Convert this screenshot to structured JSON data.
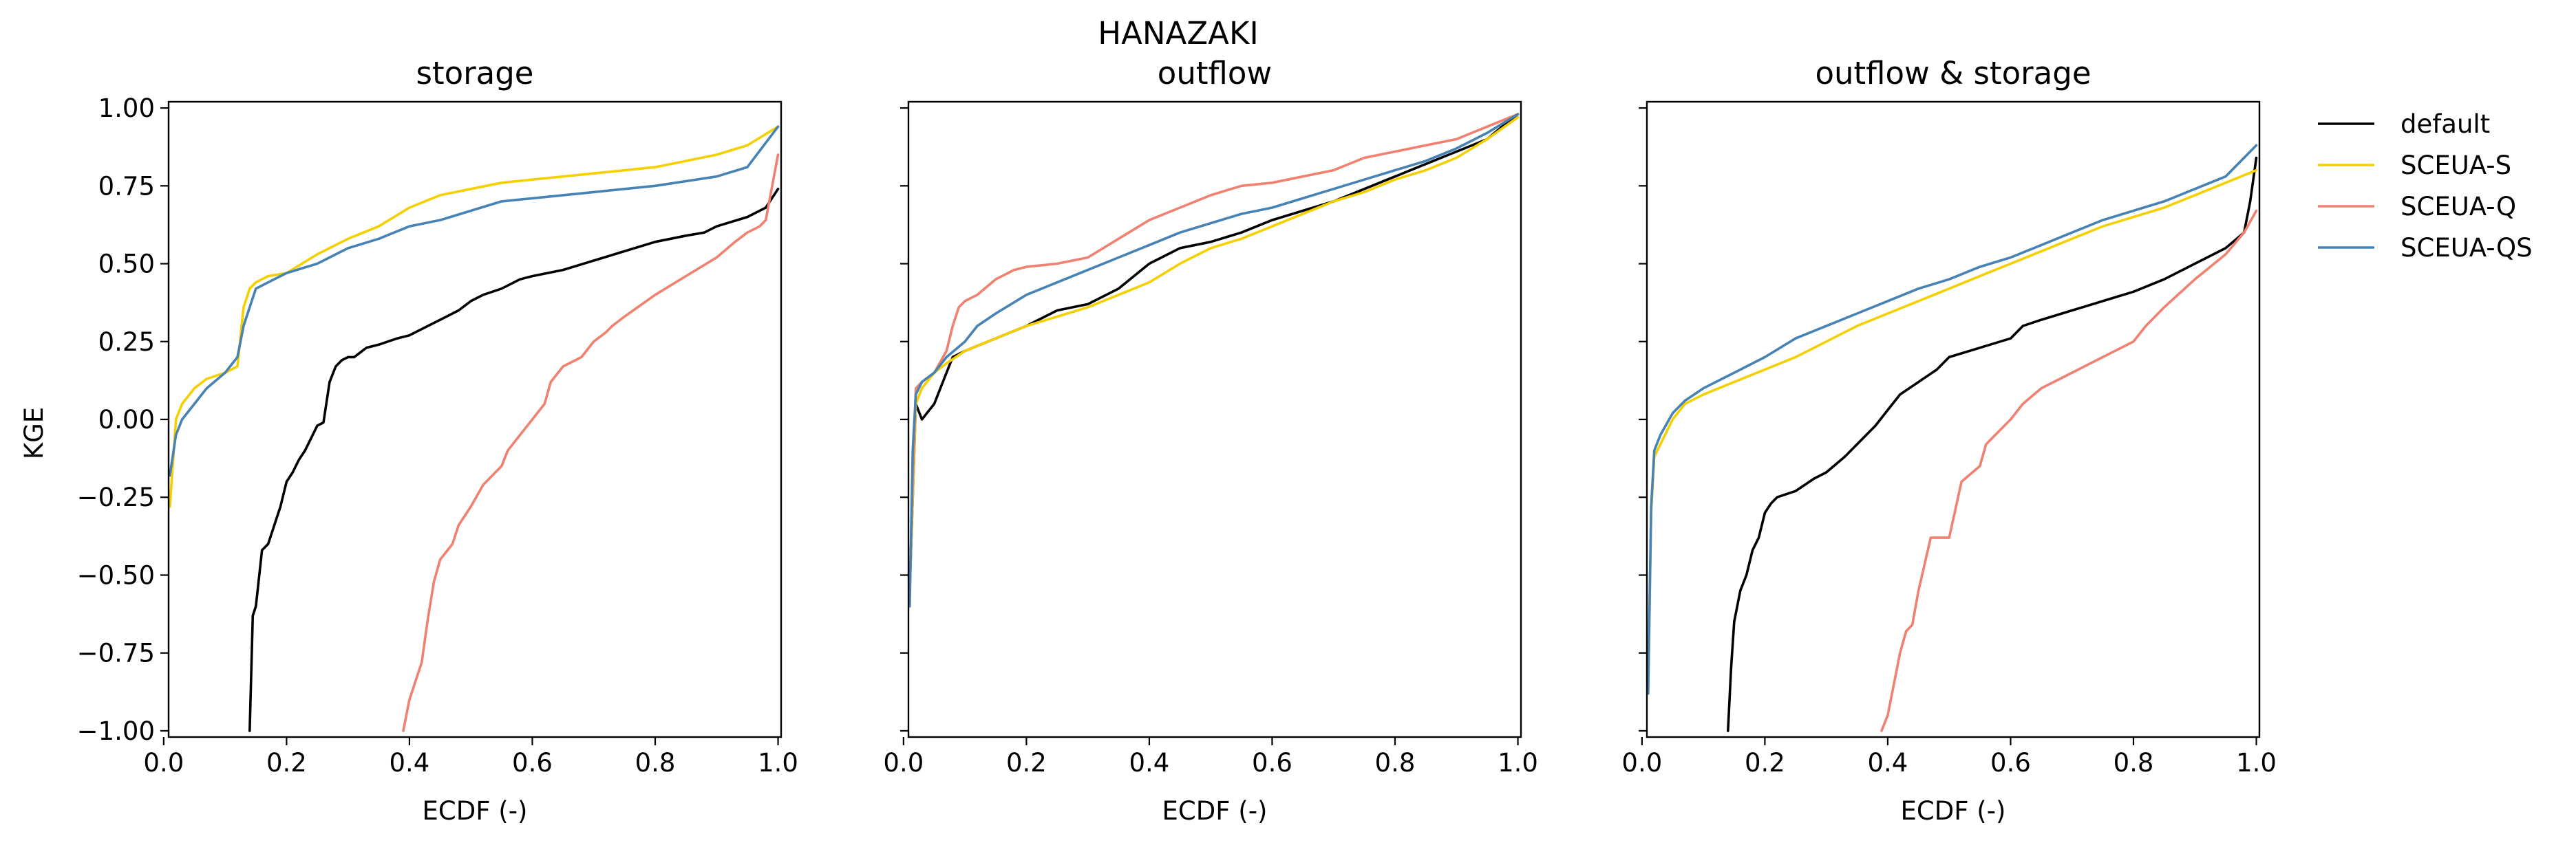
{
  "figure": {
    "suptitle": "HANAZAKI"
  },
  "chart_data": {
    "type": "line",
    "shared_y": true,
    "ylabel": "KGE",
    "ylim": [
      -1.0,
      1.0
    ],
    "xlim": [
      0.0,
      1.0
    ],
    "xticks": [
      "0.0",
      "0.2",
      "0.4",
      "0.6",
      "0.8",
      "1.0"
    ],
    "yticks": [
      "1.00",
      "0.75",
      "0.50",
      "0.25",
      "0.00",
      "−0.25",
      "−0.50",
      "−0.75",
      "−1.00"
    ],
    "xtick_values": [
      0.0,
      0.2,
      0.4,
      0.6,
      0.8,
      1.0
    ],
    "ytick_values": [
      1.0,
      0.75,
      0.5,
      0.25,
      0.0,
      -0.25,
      -0.5,
      -0.75,
      -1.0
    ],
    "grid": false,
    "legend": {
      "placement": "outside-right",
      "entries": [
        "default",
        "SCEUA-S",
        "SCEUA-Q",
        "SCEUA-QS"
      ]
    },
    "colors": {
      "default": "#000000",
      "SCEUA-S": "#f5d000",
      "SCEUA-Q": "#f08070",
      "SCEUA-QS": "#4682b4"
    },
    "panels": [
      {
        "title": "storage",
        "xlabel": "ECDF (-)",
        "series": [
          {
            "name": "default",
            "x": [
              0.14,
              0.145,
              0.15,
              0.16,
              0.17,
              0.19,
              0.2,
              0.21,
              0.22,
              0.23,
              0.25,
              0.26,
              0.27,
              0.28,
              0.29,
              0.3,
              0.31,
              0.33,
              0.35,
              0.38,
              0.4,
              0.43,
              0.45,
              0.48,
              0.5,
              0.52,
              0.55,
              0.58,
              0.6,
              0.65,
              0.7,
              0.75,
              0.8,
              0.85,
              0.88,
              0.9,
              0.95,
              0.98,
              1.0
            ],
            "y": [
              -1.0,
              -0.63,
              -0.6,
              -0.42,
              -0.4,
              -0.28,
              -0.2,
              -0.17,
              -0.13,
              -0.1,
              -0.02,
              -0.01,
              0.12,
              0.17,
              0.19,
              0.2,
              0.2,
              0.23,
              0.24,
              0.26,
              0.27,
              0.3,
              0.32,
              0.35,
              0.38,
              0.4,
              0.42,
              0.45,
              0.46,
              0.48,
              0.51,
              0.54,
              0.57,
              0.59,
              0.6,
              0.62,
              0.65,
              0.68,
              0.74
            ]
          },
          {
            "name": "SCEUA-S",
            "x": [
              0.01,
              0.02,
              0.03,
              0.05,
              0.07,
              0.1,
              0.12,
              0.13,
              0.14,
              0.15,
              0.17,
              0.2,
              0.25,
              0.3,
              0.35,
              0.4,
              0.45,
              0.5,
              0.55,
              0.6,
              0.7,
              0.8,
              0.85,
              0.9,
              0.95,
              1.0
            ],
            "y": [
              -0.28,
              0.0,
              0.05,
              0.1,
              0.13,
              0.15,
              0.17,
              0.36,
              0.42,
              0.44,
              0.46,
              0.47,
              0.53,
              0.58,
              0.62,
              0.68,
              0.72,
              0.74,
              0.76,
              0.77,
              0.79,
              0.81,
              0.83,
              0.85,
              0.88,
              0.94
            ]
          },
          {
            "name": "SCEUA-Q",
            "x": [
              0.39,
              0.4,
              0.42,
              0.43,
              0.44,
              0.45,
              0.47,
              0.48,
              0.5,
              0.52,
              0.55,
              0.56,
              0.58,
              0.6,
              0.62,
              0.63,
              0.65,
              0.68,
              0.7,
              0.72,
              0.73,
              0.75,
              0.8,
              0.85,
              0.9,
              0.93,
              0.95,
              0.97,
              0.98,
              1.0
            ],
            "y": [
              -1.0,
              -0.9,
              -0.78,
              -0.64,
              -0.52,
              -0.45,
              -0.4,
              -0.34,
              -0.28,
              -0.21,
              -0.15,
              -0.1,
              -0.05,
              0.0,
              0.05,
              0.12,
              0.17,
              0.2,
              0.25,
              0.28,
              0.3,
              0.33,
              0.4,
              0.46,
              0.52,
              0.57,
              0.6,
              0.62,
              0.64,
              0.85
            ]
          },
          {
            "name": "SCEUA-QS",
            "x": [
              0.01,
              0.02,
              0.03,
              0.05,
              0.07,
              0.1,
              0.12,
              0.13,
              0.14,
              0.15,
              0.17,
              0.2,
              0.25,
              0.3,
              0.35,
              0.4,
              0.45,
              0.5,
              0.55,
              0.6,
              0.7,
              0.8,
              0.9,
              0.95,
              1.0
            ],
            "y": [
              -0.18,
              -0.05,
              0.0,
              0.05,
              0.1,
              0.15,
              0.2,
              0.3,
              0.36,
              0.42,
              0.44,
              0.47,
              0.5,
              0.55,
              0.58,
              0.62,
              0.64,
              0.67,
              0.7,
              0.71,
              0.73,
              0.75,
              0.78,
              0.81,
              0.94
            ]
          }
        ]
      },
      {
        "title": "outflow",
        "xlabel": "ECDF (-)",
        "series": [
          {
            "name": "default",
            "x": [
              0.01,
              0.02,
              0.03,
              0.05,
              0.07,
              0.08,
              0.1,
              0.15,
              0.2,
              0.25,
              0.3,
              0.35,
              0.4,
              0.45,
              0.5,
              0.55,
              0.6,
              0.65,
              0.7,
              0.75,
              0.8,
              0.85,
              0.9,
              0.95,
              0.98,
              1.0
            ],
            "y": [
              -0.55,
              0.05,
              0.0,
              0.05,
              0.15,
              0.2,
              0.22,
              0.26,
              0.3,
              0.35,
              0.37,
              0.42,
              0.5,
              0.55,
              0.57,
              0.6,
              0.64,
              0.67,
              0.7,
              0.74,
              0.78,
              0.82,
              0.86,
              0.9,
              0.95,
              0.98
            ]
          },
          {
            "name": "SCEUA-S",
            "x": [
              0.01,
              0.02,
              0.03,
              0.05,
              0.07,
              0.1,
              0.15,
              0.2,
              0.25,
              0.3,
              0.35,
              0.4,
              0.45,
              0.5,
              0.55,
              0.6,
              0.65,
              0.7,
              0.75,
              0.8,
              0.85,
              0.9,
              0.95,
              1.0
            ],
            "y": [
              -0.55,
              0.05,
              0.1,
              0.15,
              0.18,
              0.22,
              0.26,
              0.3,
              0.33,
              0.36,
              0.4,
              0.44,
              0.5,
              0.55,
              0.58,
              0.62,
              0.66,
              0.7,
              0.73,
              0.77,
              0.8,
              0.84,
              0.9,
              0.97
            ]
          },
          {
            "name": "SCEUA-Q",
            "x": [
              0.01,
              0.015,
              0.02,
              0.03,
              0.05,
              0.07,
              0.08,
              0.09,
              0.1,
              0.12,
              0.15,
              0.18,
              0.2,
              0.25,
              0.3,
              0.35,
              0.4,
              0.45,
              0.5,
              0.55,
              0.6,
              0.65,
              0.7,
              0.75,
              0.8,
              0.85,
              0.9,
              0.95,
              1.0
            ],
            "y": [
              -0.55,
              -0.2,
              0.1,
              0.12,
              0.15,
              0.22,
              0.3,
              0.36,
              0.38,
              0.4,
              0.45,
              0.48,
              0.49,
              0.5,
              0.52,
              0.58,
              0.64,
              0.68,
              0.72,
              0.75,
              0.76,
              0.78,
              0.8,
              0.84,
              0.86,
              0.88,
              0.9,
              0.94,
              0.98
            ]
          },
          {
            "name": "SCEUA-QS",
            "x": [
              0.01,
              0.015,
              0.02,
              0.03,
              0.05,
              0.07,
              0.1,
              0.12,
              0.15,
              0.2,
              0.25,
              0.3,
              0.35,
              0.4,
              0.45,
              0.5,
              0.55,
              0.6,
              0.65,
              0.7,
              0.75,
              0.8,
              0.85,
              0.9,
              0.95,
              1.0
            ],
            "y": [
              -0.6,
              -0.1,
              0.08,
              0.12,
              0.15,
              0.2,
              0.25,
              0.3,
              0.34,
              0.4,
              0.44,
              0.48,
              0.52,
              0.56,
              0.6,
              0.63,
              0.66,
              0.68,
              0.71,
              0.74,
              0.77,
              0.8,
              0.83,
              0.87,
              0.92,
              0.98
            ]
          }
        ]
      },
      {
        "title": "outflow & storage",
        "xlabel": "ECDF (-)",
        "series": [
          {
            "name": "default",
            "x": [
              0.14,
              0.145,
              0.15,
              0.16,
              0.17,
              0.18,
              0.19,
              0.2,
              0.21,
              0.22,
              0.25,
              0.28,
              0.3,
              0.33,
              0.35,
              0.38,
              0.4,
              0.42,
              0.45,
              0.48,
              0.5,
              0.55,
              0.6,
              0.62,
              0.65,
              0.7,
              0.75,
              0.8,
              0.85,
              0.9,
              0.95,
              0.98,
              0.99,
              1.0
            ],
            "y": [
              -1.0,
              -0.8,
              -0.65,
              -0.55,
              -0.5,
              -0.42,
              -0.38,
              -0.3,
              -0.27,
              -0.25,
              -0.23,
              -0.19,
              -0.17,
              -0.12,
              -0.08,
              -0.02,
              0.03,
              0.08,
              0.12,
              0.16,
              0.2,
              0.23,
              0.26,
              0.3,
              0.32,
              0.35,
              0.38,
              0.41,
              0.45,
              0.5,
              0.55,
              0.6,
              0.7,
              0.84
            ]
          },
          {
            "name": "SCEUA-S",
            "x": [
              0.01,
              0.015,
              0.02,
              0.03,
              0.05,
              0.07,
              0.1,
              0.15,
              0.2,
              0.25,
              0.3,
              0.35,
              0.4,
              0.45,
              0.5,
              0.55,
              0.6,
              0.65,
              0.7,
              0.75,
              0.8,
              0.85,
              0.9,
              0.95,
              1.0
            ],
            "y": [
              -0.88,
              -0.3,
              -0.12,
              -0.08,
              0.0,
              0.05,
              0.08,
              0.12,
              0.16,
              0.2,
              0.25,
              0.3,
              0.34,
              0.38,
              0.42,
              0.46,
              0.5,
              0.54,
              0.58,
              0.62,
              0.65,
              0.68,
              0.72,
              0.76,
              0.8
            ]
          },
          {
            "name": "SCEUA-Q",
            "x": [
              0.39,
              0.4,
              0.42,
              0.43,
              0.44,
              0.45,
              0.47,
              0.5,
              0.52,
              0.55,
              0.56,
              0.58,
              0.6,
              0.62,
              0.65,
              0.68,
              0.7,
              0.75,
              0.8,
              0.82,
              0.85,
              0.9,
              0.95,
              0.98,
              1.0
            ],
            "y": [
              -1.0,
              -0.95,
              -0.75,
              -0.68,
              -0.66,
              -0.55,
              -0.38,
              -0.38,
              -0.2,
              -0.15,
              -0.08,
              -0.04,
              0.0,
              0.05,
              0.1,
              0.13,
              0.15,
              0.2,
              0.25,
              0.3,
              0.36,
              0.45,
              0.53,
              0.6,
              0.67
            ]
          },
          {
            "name": "SCEUA-QS",
            "x": [
              0.01,
              0.015,
              0.02,
              0.03,
              0.05,
              0.07,
              0.1,
              0.15,
              0.2,
              0.25,
              0.3,
              0.35,
              0.4,
              0.45,
              0.5,
              0.55,
              0.6,
              0.65,
              0.7,
              0.75,
              0.8,
              0.85,
              0.9,
              0.95,
              1.0
            ],
            "y": [
              -0.88,
              -0.28,
              -0.1,
              -0.05,
              0.02,
              0.06,
              0.1,
              0.15,
              0.2,
              0.26,
              0.3,
              0.34,
              0.38,
              0.42,
              0.45,
              0.49,
              0.52,
              0.56,
              0.6,
              0.64,
              0.67,
              0.7,
              0.74,
              0.78,
              0.88
            ]
          }
        ]
      }
    ]
  }
}
